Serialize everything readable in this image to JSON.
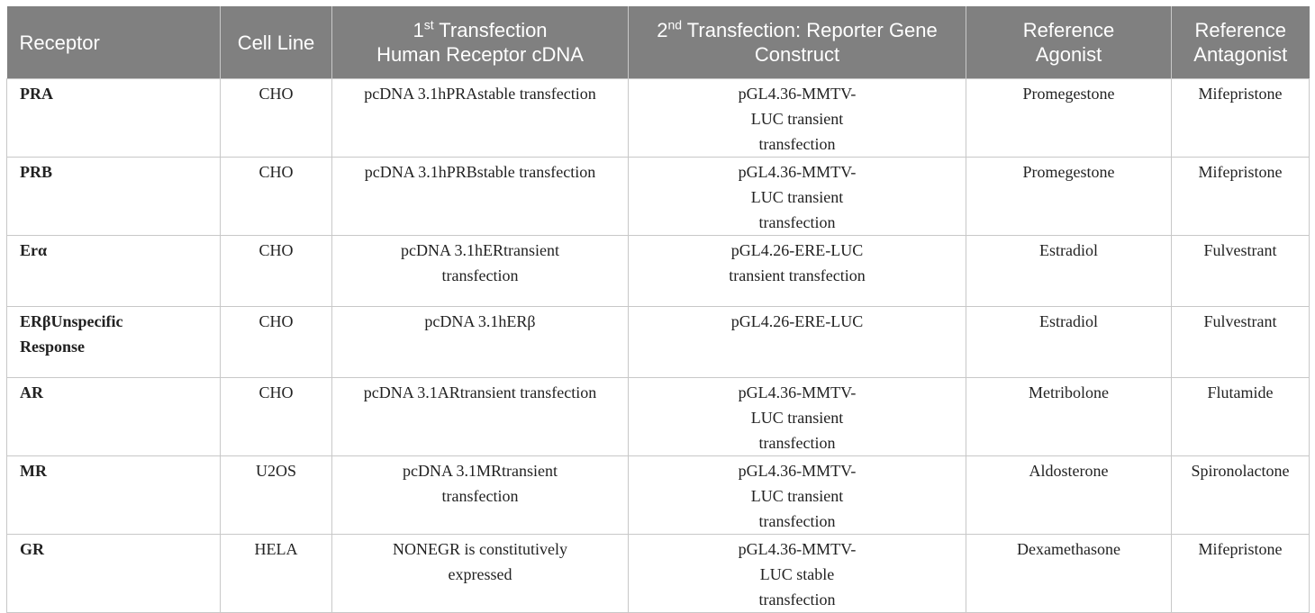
{
  "header": {
    "receptor": "Receptor",
    "cell_line": "Cell Line",
    "first_sup": "st",
    "first_rest": " Transfection",
    "first_line2": "Human Receptor cDNA",
    "second_sup": "nd",
    "second_rest": " Transfection: Reporter Gene",
    "second_line2": "Construct",
    "agonist_line1": "Reference",
    "agonist_line2": "Agonist",
    "antagonist_line1": "Reference",
    "antagonist_line2": "Antagonist"
  },
  "rows": [
    {
      "receptor": "PRA",
      "cell_line": "CHO",
      "first": "pcDNA 3.1hPRAstable transfection",
      "second": "pGL4.36-MMTV-LUC transient transfection",
      "agonist": "Promegestone",
      "antagonist": "Mifepristone"
    },
    {
      "receptor": "PRB",
      "cell_line": "CHO",
      "first": "pcDNA 3.1hPRBstable transfection",
      "second": "pGL4.36-MMTV-LUC transient transfection",
      "agonist": "Promegestone",
      "antagonist": "Mifepristone"
    },
    {
      "receptor": "Erα",
      "cell_line": "CHO",
      "first": "pcDNA 3.1hERtransient transfection",
      "second": "pGL4.26-ERE-LUC transient transfection",
      "agonist": "Estradiol",
      "antagonist": "Fulvestrant"
    },
    {
      "receptor": "ERβUnspecific Response",
      "cell_line": "CHO",
      "first": "pcDNA 3.1hERβ",
      "second": "pGL4.26-ERE-LUC",
      "agonist": "Estradiol",
      "antagonist": "Fulvestrant"
    },
    {
      "receptor": "AR",
      "cell_line": "CHO",
      "first": "pcDNA 3.1ARtransient transfection",
      "second": "pGL4.36-MMTV-LUC transient transfection",
      "agonist": "Metribolone",
      "antagonist": "Flutamide"
    },
    {
      "receptor": "MR",
      "cell_line": "U2OS",
      "first": "pcDNA 3.1MRtransient transfection",
      "second": "pGL4.36-MMTV-LUC transient transfection",
      "agonist": "Aldosterone",
      "antagonist": "Spironolactone"
    },
    {
      "receptor": "GR",
      "cell_line": "HELA",
      "first": "NONEGR is constitutively expressed",
      "second": "pGL4.36-MMTV-LUC stable transfection",
      "agonist": "Dexamethasone",
      "antagonist": "Mifepristone"
    }
  ]
}
